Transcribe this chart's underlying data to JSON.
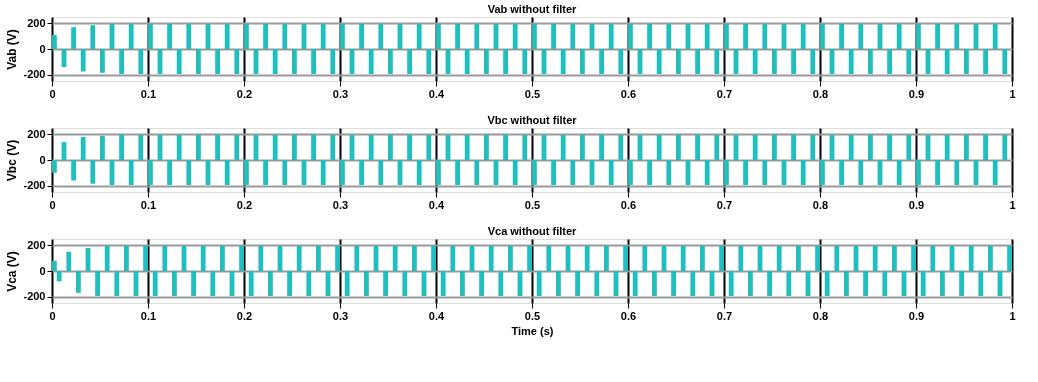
{
  "chart_data": [
    {
      "type": "area",
      "title": "Vab without filter",
      "ylabel": "Vab  (V)",
      "xlim": [
        0,
        1
      ],
      "ylim": [
        -250,
        250
      ],
      "xticks": [
        0,
        0.1,
        0.2,
        0.3,
        0.4,
        0.5,
        0.6,
        0.7,
        0.8,
        0.9,
        1
      ],
      "yticks": [
        -200,
        0,
        200
      ],
      "grid": true,
      "x": [
        0,
        0.005,
        0.01,
        0.015,
        0.02,
        0.025,
        0.03,
        0.035,
        0.04,
        0.045,
        0.05,
        0.055,
        0.06,
        0.065,
        0.07,
        0.075,
        0.08,
        0.085,
        0.09,
        0.095,
        0.1,
        0.105,
        0.11,
        0.115,
        0.12,
        0.125,
        0.13,
        0.135,
        0.14,
        0.145,
        0.15,
        0.155,
        0.16,
        0.165,
        0.17,
        0.175,
        0.18,
        0.185,
        0.19,
        0.195,
        0.2,
        0.205,
        0.21,
        0.215,
        0.22,
        0.225,
        0.23,
        0.235,
        0.24,
        0.245,
        0.25,
        0.255,
        0.26,
        0.265,
        0.27,
        0.275,
        0.28,
        0.285,
        0.29,
        0.295,
        0.3,
        0.305,
        0.31,
        0.315,
        0.32,
        0.325,
        0.33,
        0.335,
        0.34,
        0.345,
        0.35,
        0.355,
        0.36,
        0.365,
        0.37,
        0.375,
        0.38,
        0.385,
        0.39,
        0.395,
        0.4,
        0.405,
        0.41,
        0.415,
        0.42,
        0.425,
        0.43,
        0.435,
        0.44,
        0.445,
        0.45,
        0.455,
        0.46,
        0.465,
        0.47,
        0.475,
        0.48,
        0.485,
        0.49,
        0.495,
        0.5,
        0.505,
        0.51,
        0.515,
        0.52,
        0.525,
        0.53,
        0.535,
        0.54,
        0.545,
        0.55,
        0.555,
        0.56,
        0.565,
        0.57,
        0.575,
        0.58,
        0.585,
        0.59,
        0.595,
        0.6,
        0.605,
        0.61,
        0.615,
        0.62,
        0.625,
        0.63,
        0.635,
        0.64,
        0.645,
        0.65,
        0.655,
        0.66,
        0.665,
        0.67,
        0.675,
        0.68,
        0.685,
        0.69,
        0.695,
        0.7,
        0.705,
        0.71,
        0.715,
        0.72,
        0.725,
        0.73,
        0.735,
        0.74,
        0.745,
        0.75,
        0.755,
        0.76,
        0.765,
        0.77,
        0.775,
        0.78,
        0.785,
        0.79,
        0.795,
        0.8,
        0.805,
        0.81,
        0.815,
        0.82,
        0.825,
        0.83,
        0.835,
        0.84,
        0.845,
        0.85,
        0.855,
        0.86,
        0.865,
        0.87,
        0.875,
        0.88,
        0.885,
        0.89,
        0.895,
        0.9,
        0.905,
        0.91,
        0.915,
        0.92,
        0.925,
        0.93,
        0.935,
        0.94,
        0.945,
        0.95,
        0.955,
        0.96,
        0.965,
        0.97,
        0.975,
        0.98,
        0.985,
        0.99,
        0.995,
        1
      ],
      "series": [
        {
          "color": "#1fbfbf",
          "values": [
            110,
            0,
            -140,
            0,
            170,
            0,
            -175,
            0,
            185,
            0,
            -185,
            0,
            195,
            0,
            -195,
            0,
            195,
            0,
            -195,
            0,
            195,
            0,
            -195,
            0,
            195,
            0,
            -195,
            0,
            195,
            0,
            -195,
            0,
            195,
            0,
            -195,
            0,
            195,
            0,
            -195,
            0,
            195,
            0,
            -195,
            0,
            195,
            0,
            -195,
            0,
            195,
            0,
            -195,
            0,
            195,
            0,
            -195,
            0,
            195,
            0,
            -195,
            0,
            195,
            0,
            -195,
            0,
            195,
            0,
            -195,
            0,
            195,
            0,
            -195,
            0,
            195,
            0,
            -195,
            0,
            195,
            0,
            -195,
            0,
            195,
            0,
            -195,
            0,
            195,
            0,
            -195,
            0,
            195,
            0,
            -195,
            0,
            195,
            0,
            -195,
            0,
            195,
            0,
            -195,
            0,
            195,
            0,
            -195,
            0,
            195,
            0,
            -195,
            0,
            195,
            0,
            -195,
            0,
            195,
            0,
            -195,
            0,
            195,
            0,
            -195,
            0,
            195,
            0,
            -195,
            0,
            195,
            0,
            -195,
            0,
            195,
            0,
            -195,
            0,
            195,
            0,
            -195,
            0,
            195,
            0,
            -195,
            0,
            195,
            0,
            -195,
            0,
            195,
            0,
            -195,
            0,
            195,
            0,
            -195,
            0,
            195,
            0,
            -195,
            0,
            195,
            0,
            -195,
            0,
            195,
            0,
            -195,
            0,
            195,
            0,
            -195,
            0,
            195,
            0,
            -195,
            0,
            195,
            0,
            -195,
            0,
            195,
            0,
            -195,
            0,
            195,
            0,
            -195,
            0,
            195,
            0,
            -195,
            0,
            195,
            0,
            -195,
            0,
            195,
            0,
            -195,
            0,
            195,
            0,
            -195,
            0,
            195
          ]
        }
      ]
    },
    {
      "type": "area",
      "title": "Vbc without filter",
      "ylabel": "Vbc (V)",
      "xlim": [
        0,
        1
      ],
      "ylim": [
        -250,
        250
      ],
      "xticks": [
        0,
        0.1,
        0.2,
        0.3,
        0.4,
        0.5,
        0.6,
        0.7,
        0.8,
        0.9,
        1
      ],
      "yticks": [
        -200,
        0,
        200
      ],
      "grid": true,
      "x": [
        0,
        0.005,
        0.01,
        0.015,
        0.02,
        0.025,
        0.03,
        0.035,
        0.04,
        0.045,
        0.05,
        0.055,
        0.06,
        0.065,
        0.07,
        0.075,
        0.08,
        0.085,
        0.09,
        0.095,
        0.1,
        0.105,
        0.11,
        0.115,
        0.12,
        0.125,
        0.13,
        0.135,
        0.14,
        0.145,
        0.15,
        0.155,
        0.16,
        0.165,
        0.17,
        0.175,
        0.18,
        0.185,
        0.19,
        0.195,
        0.2,
        0.205,
        0.21,
        0.215,
        0.22,
        0.225,
        0.23,
        0.235,
        0.24,
        0.245,
        0.25,
        0.255,
        0.26,
        0.265,
        0.27,
        0.275,
        0.28,
        0.285,
        0.29,
        0.295,
        0.3,
        0.305,
        0.31,
        0.315,
        0.32,
        0.325,
        0.33,
        0.335,
        0.34,
        0.345,
        0.35,
        0.355,
        0.36,
        0.365,
        0.37,
        0.375,
        0.38,
        0.385,
        0.39,
        0.395,
        0.4,
        0.405,
        0.41,
        0.415,
        0.42,
        0.425,
        0.43,
        0.435,
        0.44,
        0.445,
        0.45,
        0.455,
        0.46,
        0.465,
        0.47,
        0.475,
        0.48,
        0.485,
        0.49,
        0.495,
        0.5,
        0.505,
        0.51,
        0.515,
        0.52,
        0.525,
        0.53,
        0.535,
        0.54,
        0.545,
        0.55,
        0.555,
        0.56,
        0.565,
        0.57,
        0.575,
        0.58,
        0.585,
        0.59,
        0.595,
        0.6,
        0.605,
        0.61,
        0.615,
        0.62,
        0.625,
        0.63,
        0.635,
        0.64,
        0.645,
        0.65,
        0.655,
        0.66,
        0.665,
        0.67,
        0.675,
        0.68,
        0.685,
        0.69,
        0.695,
        0.7,
        0.705,
        0.71,
        0.715,
        0.72,
        0.725,
        0.73,
        0.735,
        0.74,
        0.745,
        0.75,
        0.755,
        0.76,
        0.765,
        0.77,
        0.775,
        0.78,
        0.785,
        0.79,
        0.795,
        0.8,
        0.805,
        0.81,
        0.815,
        0.82,
        0.825,
        0.83,
        0.835,
        0.84,
        0.845,
        0.85,
        0.855,
        0.86,
        0.865,
        0.87,
        0.875,
        0.88,
        0.885,
        0.89,
        0.895,
        0.9,
        0.905,
        0.91,
        0.915,
        0.92,
        0.925,
        0.93,
        0.935,
        0.94,
        0.945,
        0.95,
        0.955,
        0.96,
        0.965,
        0.97,
        0.975,
        0.98,
        0.985,
        0.99,
        0.995,
        1
      ],
      "series": [
        {
          "color": "#1fbfbf",
          "values": [
            -100,
            0,
            140,
            0,
            -160,
            0,
            180,
            0,
            -185,
            0,
            190,
            0,
            -195,
            0,
            195,
            0,
            -195,
            0,
            195,
            0,
            -195,
            0,
            195,
            0,
            -195,
            0,
            195,
            0,
            -195,
            0,
            195,
            0,
            -195,
            0,
            195,
            0,
            -195,
            0,
            195,
            0,
            -195,
            0,
            195,
            0,
            -195,
            0,
            195,
            0,
            -195,
            0,
            195,
            0,
            -195,
            0,
            195,
            0,
            -195,
            0,
            195,
            0,
            -195,
            0,
            195,
            0,
            -195,
            0,
            195,
            0,
            -195,
            0,
            195,
            0,
            -195,
            0,
            195,
            0,
            -195,
            0,
            195,
            0,
            -195,
            0,
            195,
            0,
            -195,
            0,
            195,
            0,
            -195,
            0,
            195,
            0,
            -195,
            0,
            195,
            0,
            -195,
            0,
            195,
            0,
            -195,
            0,
            195,
            0,
            -195,
            0,
            195,
            0,
            -195,
            0,
            195,
            0,
            -195,
            0,
            195,
            0,
            -195,
            0,
            195,
            0,
            -195,
            0,
            195,
            0,
            -195,
            0,
            195,
            0,
            -195,
            0,
            195,
            0,
            -195,
            0,
            195,
            0,
            -195,
            0,
            195,
            0,
            -195,
            0,
            195,
            0,
            -195,
            0,
            195,
            0,
            -195,
            0,
            195,
            0,
            -195,
            0,
            195,
            0,
            -195,
            0,
            195,
            0,
            -195,
            0,
            195,
            0,
            -195,
            0,
            195,
            0,
            -195,
            0,
            195,
            0,
            -195,
            0,
            195,
            0,
            -195,
            0,
            195,
            0,
            -195,
            0,
            195,
            0,
            -195,
            0,
            195,
            0,
            -195,
            0,
            195,
            0,
            -195,
            0,
            195,
            0,
            -195,
            0,
            195,
            0,
            -195
          ]
        }
      ]
    },
    {
      "type": "area",
      "title": "Vca without filter",
      "ylabel": "Vca (V)",
      "xlabel": "Time (s)",
      "xlim": [
        0,
        1
      ],
      "ylim": [
        -250,
        250
      ],
      "xticks": [
        0,
        0.1,
        0.2,
        0.3,
        0.4,
        0.5,
        0.6,
        0.7,
        0.8,
        0.9,
        1
      ],
      "yticks": [
        -200,
        0,
        200
      ],
      "grid": true,
      "x": [
        0,
        0.005,
        0.01,
        0.015,
        0.02,
        0.025,
        0.03,
        0.035,
        0.04,
        0.045,
        0.05,
        0.055,
        0.06,
        0.065,
        0.07,
        0.075,
        0.08,
        0.085,
        0.09,
        0.095,
        0.1,
        0.105,
        0.11,
        0.115,
        0.12,
        0.125,
        0.13,
        0.135,
        0.14,
        0.145,
        0.15,
        0.155,
        0.16,
        0.165,
        0.17,
        0.175,
        0.18,
        0.185,
        0.19,
        0.195,
        0.2,
        0.205,
        0.21,
        0.215,
        0.22,
        0.225,
        0.23,
        0.235,
        0.24,
        0.245,
        0.25,
        0.255,
        0.26,
        0.265,
        0.27,
        0.275,
        0.28,
        0.285,
        0.29,
        0.295,
        0.3,
        0.305,
        0.31,
        0.315,
        0.32,
        0.325,
        0.33,
        0.335,
        0.34,
        0.345,
        0.35,
        0.355,
        0.36,
        0.365,
        0.37,
        0.375,
        0.38,
        0.385,
        0.39,
        0.395,
        0.4,
        0.405,
        0.41,
        0.415,
        0.42,
        0.425,
        0.43,
        0.435,
        0.44,
        0.445,
        0.45,
        0.455,
        0.46,
        0.465,
        0.47,
        0.475,
        0.48,
        0.485,
        0.49,
        0.495,
        0.5,
        0.505,
        0.51,
        0.515,
        0.52,
        0.525,
        0.53,
        0.535,
        0.54,
        0.545,
        0.55,
        0.555,
        0.56,
        0.565,
        0.57,
        0.575,
        0.58,
        0.585,
        0.59,
        0.595,
        0.6,
        0.605,
        0.61,
        0.615,
        0.62,
        0.625,
        0.63,
        0.635,
        0.64,
        0.645,
        0.65,
        0.655,
        0.66,
        0.665,
        0.67,
        0.675,
        0.68,
        0.685,
        0.69,
        0.695,
        0.7,
        0.705,
        0.71,
        0.715,
        0.72,
        0.725,
        0.73,
        0.735,
        0.74,
        0.745,
        0.75,
        0.755,
        0.76,
        0.765,
        0.77,
        0.775,
        0.78,
        0.785,
        0.79,
        0.795,
        0.8,
        0.805,
        0.81,
        0.815,
        0.82,
        0.825,
        0.83,
        0.835,
        0.84,
        0.845,
        0.85,
        0.855,
        0.86,
        0.865,
        0.87,
        0.875,
        0.88,
        0.885,
        0.89,
        0.895,
        0.9,
        0.905,
        0.91,
        0.915,
        0.92,
        0.925,
        0.93,
        0.935,
        0.94,
        0.945,
        0.95,
        0.955,
        0.96,
        0.965,
        0.97,
        0.975,
        0.98,
        0.985,
        0.99,
        0.995,
        1
      ],
      "series": [
        {
          "color": "#1fbfbf",
          "values": [
            80,
            -80,
            0,
            150,
            0,
            -170,
            0,
            180,
            0,
            -195,
            0,
            195,
            0,
            -195,
            0,
            195,
            0,
            -195,
            0,
            195,
            0,
            -195,
            0,
            195,
            0,
            -195,
            0,
            195,
            0,
            -195,
            0,
            195,
            0,
            -195,
            0,
            195,
            0,
            -195,
            0,
            195,
            0,
            -195,
            0,
            195,
            0,
            -195,
            0,
            195,
            0,
            -195,
            0,
            195,
            0,
            -195,
            0,
            195,
            0,
            -195,
            0,
            195,
            0,
            -195,
            0,
            195,
            0,
            -195,
            0,
            195,
            0,
            -195,
            0,
            195,
            0,
            -195,
            0,
            195,
            0,
            -195,
            0,
            195,
            0,
            -195,
            0,
            195,
            0,
            -195,
            0,
            195,
            0,
            -195,
            0,
            195,
            0,
            -195,
            0,
            195,
            0,
            -195,
            0,
            195,
            0,
            -195,
            0,
            195,
            0,
            -195,
            0,
            195,
            0,
            -195,
            0,
            195,
            0,
            -195,
            0,
            195,
            0,
            -195,
            0,
            195,
            0,
            -195,
            0,
            195,
            0,
            -195,
            0,
            195,
            0,
            -195,
            0,
            195,
            0,
            -195,
            0,
            195,
            0,
            -195,
            0,
            195,
            0,
            -195,
            0,
            195,
            0,
            -195,
            0,
            195,
            0,
            -195,
            0,
            195,
            0,
            -195,
            0,
            195,
            0,
            -195,
            0,
            195,
            0,
            -195,
            0,
            195,
            0,
            -195,
            0,
            195,
            0,
            -195,
            0,
            195,
            0,
            -195,
            0,
            195,
            0,
            -195,
            0,
            195,
            0,
            -195,
            0,
            195,
            0,
            -195,
            0,
            195,
            0,
            -195,
            0,
            195,
            0,
            -195,
            0,
            195,
            0,
            -195,
            0,
            195,
            0
          ]
        }
      ]
    }
  ]
}
